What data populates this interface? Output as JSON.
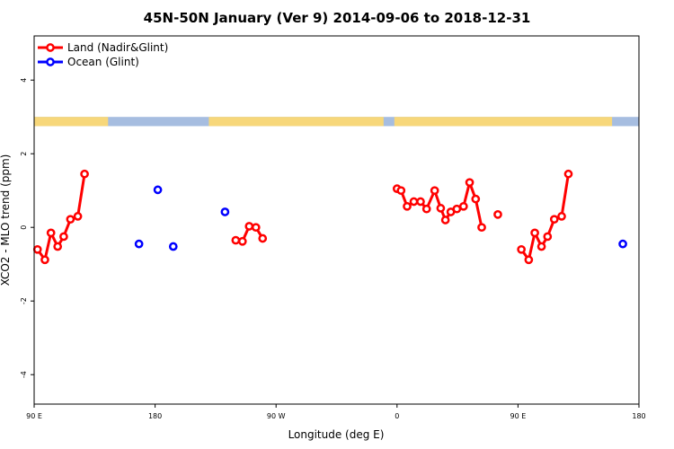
{
  "chart_data": {
    "type": "scatter",
    "title": "45N-50N January (Ver 9)   2014-09-06 to 2018-12-31",
    "xlabel": "Longitude (deg E)",
    "ylabel": "XCO2 - MLO trend (ppm)",
    "xlim": [
      90,
      540
    ],
    "ylim": [
      -4.8,
      5.2
    ],
    "x_ticks": [
      {
        "value": 90,
        "label": "90 E"
      },
      {
        "value": 180,
        "label": "180"
      },
      {
        "value": 270,
        "label": "90 W"
      },
      {
        "value": 360,
        "label": "0"
      },
      {
        "value": 450,
        "label": "90 E"
      },
      {
        "value": 540,
        "label": "180"
      }
    ],
    "y_ticks": [
      {
        "value": 4,
        "label": "4"
      },
      {
        "value": 2,
        "label": "2"
      },
      {
        "value": 0,
        "label": "0"
      },
      {
        "value": -2,
        "label": "-2"
      },
      {
        "value": -4,
        "label": "-4"
      }
    ],
    "legend_position": "top-left",
    "land_strip": {
      "y_range": [
        2.75,
        3.0
      ],
      "land_color": "#f7d77a",
      "ocean_color": "#a6bde0"
    },
    "series": [
      {
        "name": "Land (Nadir&Glint)",
        "color": "#ff0000",
        "style": "line+circles",
        "segments": [
          {
            "x": [
              92.5,
              98,
              102.5,
              107.5,
              112,
              117,
              122.5,
              127.5
            ],
            "y": [
              -0.6,
              -0.88,
              -0.15,
              -0.52,
              -0.25,
              0.22,
              0.3,
              1.45
            ]
          },
          {
            "x": [
              240,
              245,
              250,
              255,
              260
            ],
            "y": [
              -0.35,
              -0.38,
              0.03,
              0.0,
              -0.3
            ]
          },
          {
            "x": [
              360,
              363,
              367.5,
              372.5,
              377.5,
              382,
              388,
              392.5,
              396,
              400,
              404.5,
              409.5,
              414,
              418.5,
              423
            ],
            "y": [
              1.05,
              1.0,
              0.57,
              0.7,
              0.7,
              0.5,
              1.0,
              0.52,
              0.2,
              0.42,
              0.5,
              0.57,
              1.22,
              0.77,
              0.0
            ]
          },
          {
            "x": [
              452.5,
              458,
              462.5,
              467.5,
              472,
              477,
              482.5,
              487.5
            ],
            "y": [
              -0.6,
              -0.88,
              -0.15,
              -0.52,
              -0.25,
              0.22,
              0.3,
              1.45
            ]
          }
        ],
        "points": [
          {
            "x": 435,
            "y": 0.35
          }
        ]
      },
      {
        "name": "Ocean (Glint)",
        "color": "#0000ff",
        "style": "circles",
        "points": [
          {
            "x": 168,
            "y": -0.45
          },
          {
            "x": 182,
            "y": 1.02
          },
          {
            "x": 193.5,
            "y": -0.52
          },
          {
            "x": 232,
            "y": 0.42
          },
          {
            "x": 528,
            "y": -0.45
          }
        ]
      }
    ]
  }
}
